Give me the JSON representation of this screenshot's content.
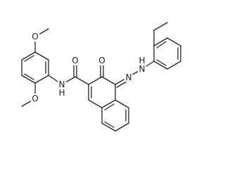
{
  "atoms": [
    {
      "label": "O"
    },
    {
      "label": "O"
    },
    {
      "label": "N"
    },
    {
      "label": "H"
    },
    {
      "label": "O"
    },
    {
      "label": "O"
    },
    {
      "label": "N"
    },
    {
      "label": "H"
    },
    {
      "label": "N"
    }
  ]
}
